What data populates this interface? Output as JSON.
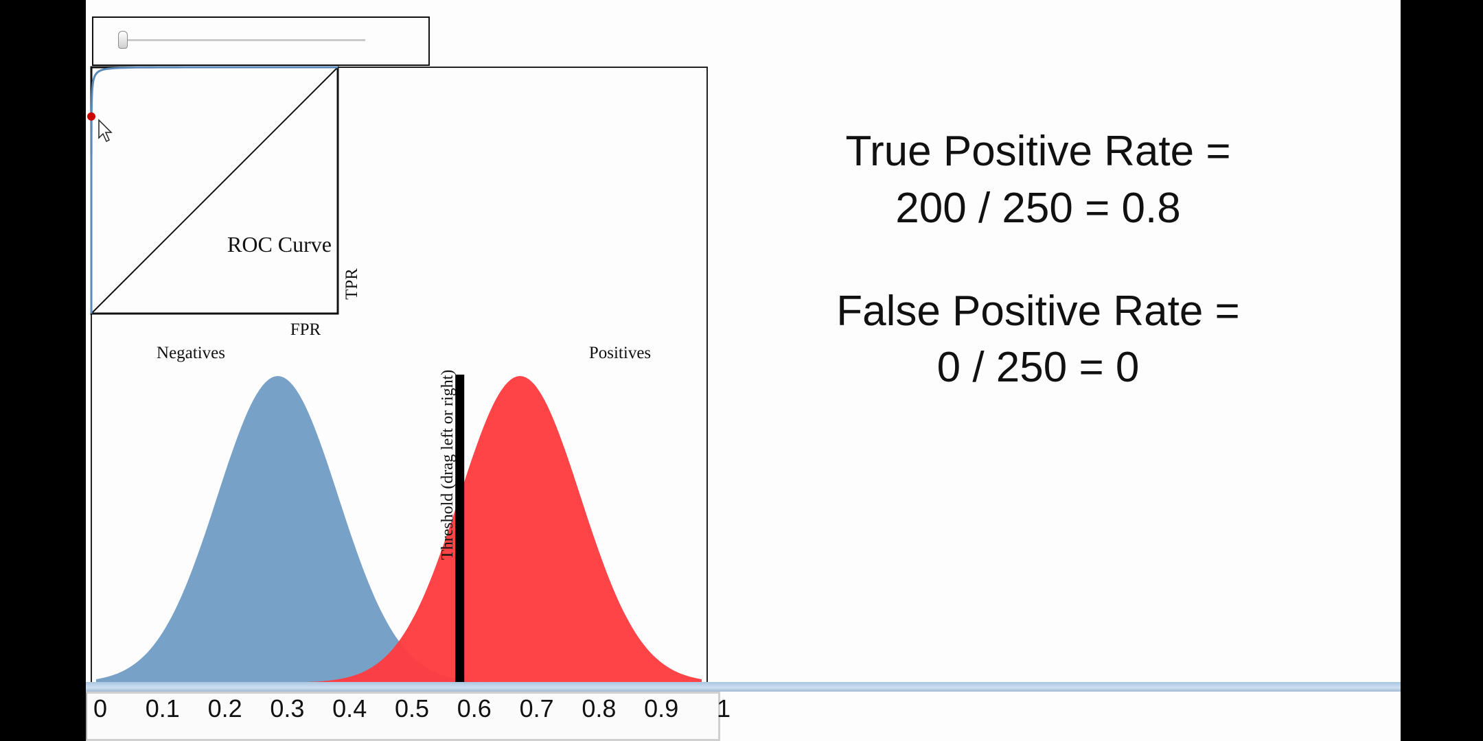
{
  "demo": {
    "slider": {
      "value": 0
    },
    "roc": {
      "title": "ROC Curve",
      "xlabel": "FPR",
      "ylabel": "TPR",
      "operating_point": {
        "fpr": 0,
        "tpr": 0.8
      }
    },
    "distributions": {
      "negatives_label": "Negatives",
      "positives_label": "Positives",
      "negatives_mean": 0.3,
      "positives_mean": 0.7,
      "negatives_color": "#77a1c7",
      "positives_color": "#ff3c41"
    },
    "threshold": {
      "label": "Threshold (drag left or right)",
      "value": 0.6
    },
    "axis": {
      "ticks": [
        "0",
        "0.1",
        "0.2",
        "0.3",
        "0.4",
        "0.5",
        "0.6",
        "0.7",
        "0.8",
        "0.9",
        "1"
      ]
    }
  },
  "metrics": {
    "tpr_label": "True Positive Rate =",
    "tpr_value": "200 / 250 = 0.8",
    "fpr_label": "False Positive Rate =",
    "fpr_value": "0 / 250 = 0"
  }
}
